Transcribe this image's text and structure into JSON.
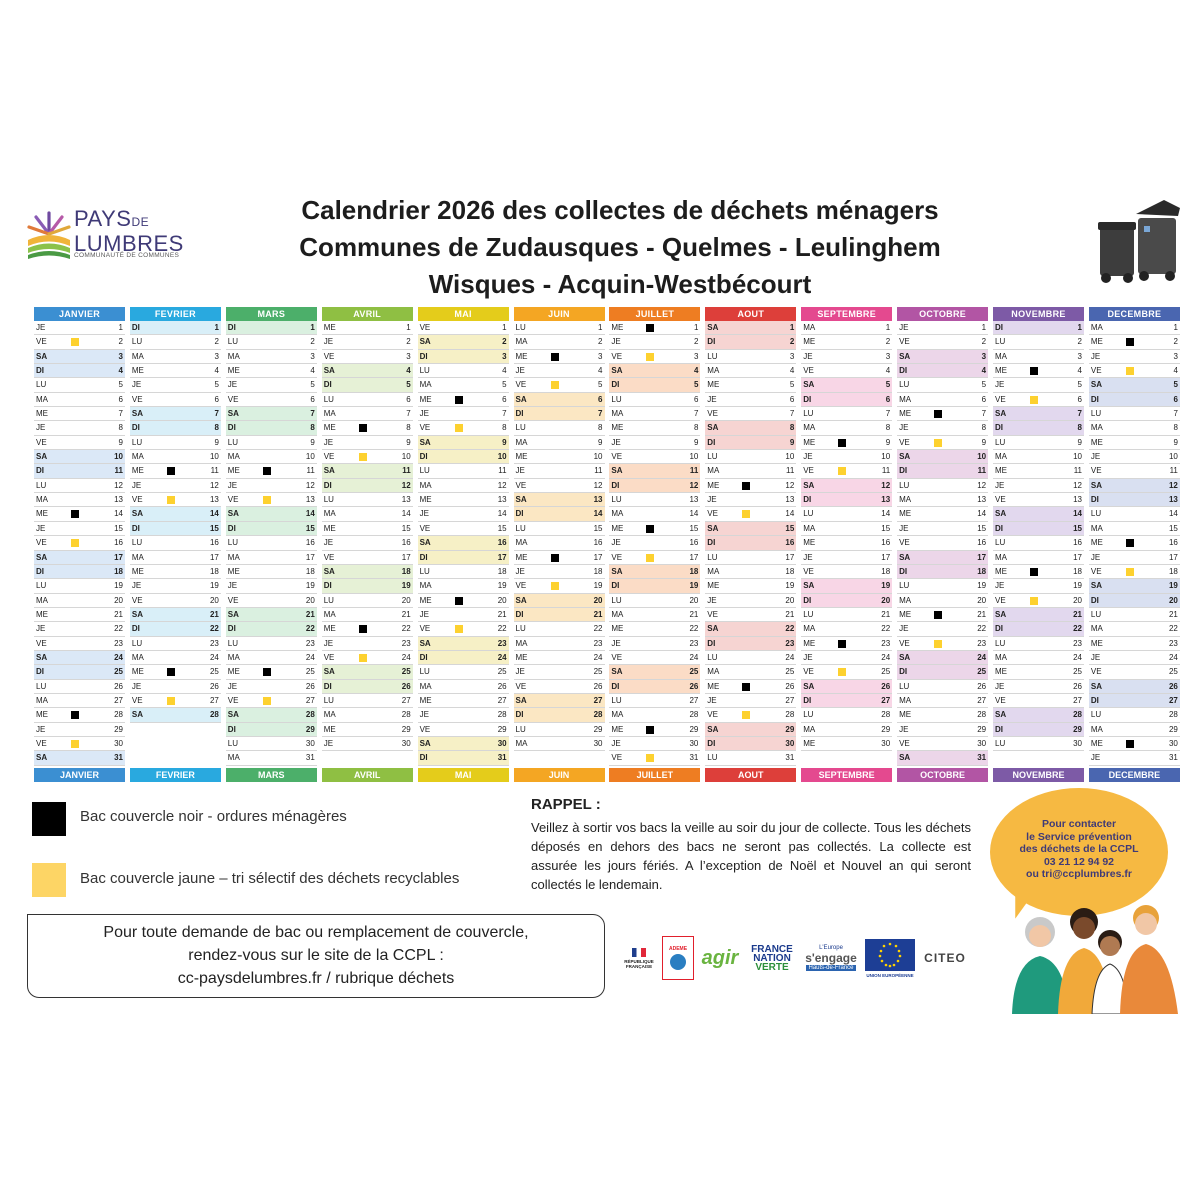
{
  "logo": {
    "line1": "PAYS",
    "line1_small": "DE",
    "line2": "LUMBRES",
    "sub": "COMMUNAUTÉ DE COMMUNES"
  },
  "title": {
    "line1": "Calendrier 2026 des collectes de déchets ménagers",
    "line2": "Communes de Zudausques - Quelmes - Leulinghem",
    "line3": "Wisques - Acquin-Westbécourt"
  },
  "months": [
    {
      "name": "JANVIER",
      "color": "#3b8fd2",
      "tint": "#dbe8f7",
      "start": 3,
      "days": 31,
      "black": [
        14,
        28
      ],
      "yellow": [
        2,
        16,
        30
      ]
    },
    {
      "name": "FEVRIER",
      "color": "#29a9df",
      "tint": "#d9eff8",
      "start": 6,
      "days": 28,
      "black": [
        11,
        25
      ],
      "yellow": [
        13,
        27
      ]
    },
    {
      "name": "MARS",
      "color": "#4caf6a",
      "tint": "#daf0e0",
      "start": 6,
      "days": 31,
      "black": [
        11,
        25
      ],
      "yellow": [
        13,
        27
      ]
    },
    {
      "name": "AVRIL",
      "color": "#8fbf43",
      "tint": "#e6f1d6",
      "start": 2,
      "days": 30,
      "black": [
        8,
        22
      ],
      "yellow": [
        10,
        24
      ]
    },
    {
      "name": "MAI",
      "color": "#e4cc1b",
      "tint": "#f6f0c6",
      "start": 4,
      "days": 31,
      "black": [
        6,
        20
      ],
      "yellow": [
        8,
        22
      ]
    },
    {
      "name": "JUIN",
      "color": "#f4a623",
      "tint": "#fbe7c3",
      "start": 0,
      "days": 30,
      "black": [
        3,
        17
      ],
      "yellow": [
        5,
        19
      ]
    },
    {
      "name": "JUILLET",
      "color": "#ee7d22",
      "tint": "#fbdcc6",
      "start": 2,
      "days": 31,
      "black": [
        1,
        15,
        29
      ],
      "yellow": [
        3,
        17,
        31
      ]
    },
    {
      "name": "AOUT",
      "color": "#dd3f3a",
      "tint": "#f6d4d2",
      "start": 5,
      "days": 31,
      "black": [
        12,
        26
      ],
      "yellow": [
        14,
        28
      ]
    },
    {
      "name": "SEPTEMBRE",
      "color": "#e4498f",
      "tint": "#f8d6e6",
      "start": 1,
      "days": 30,
      "black": [
        9,
        23
      ],
      "yellow": [
        11,
        25
      ]
    },
    {
      "name": "OCTOBRE",
      "color": "#b255a4",
      "tint": "#ecd6e9",
      "start": 3,
      "days": 31,
      "black": [
        7,
        21
      ],
      "yellow": [
        9,
        23
      ]
    },
    {
      "name": "NOVEMBRE",
      "color": "#7d5aa6",
      "tint": "#e2d8ee",
      "start": 6,
      "days": 30,
      "black": [
        4,
        18
      ],
      "yellow": [
        6,
        20
      ]
    },
    {
      "name": "DECEMBRE",
      "color": "#4a66b0",
      "tint": "#d9e0f1",
      "start": 1,
      "days": 31,
      "black": [
        2,
        16,
        30
      ],
      "yellow": [
        4,
        18
      ]
    }
  ],
  "day_abbr": [
    "LU",
    "MA",
    "ME",
    "JE",
    "VE",
    "SA",
    "DI"
  ],
  "legend": {
    "black_label": "Bac couvercle noir - ordures ménagères",
    "yellow_label": "Bac couvercle jaune – tri sélectif des déchets recyclables",
    "black_color": "#000000",
    "yellow_color": "#fdd565"
  },
  "rappel": {
    "title": "RAPPEL :",
    "text": "Veillez à sortir vos bacs la veille au soir du jour de collecte. Tous les déchets déposés en dehors des bacs ne seront pas collectés. La collecte est assurée les jours fériés.  A l’exception de Noël et Nouvel an qui seront collectés le lendemain."
  },
  "demande": {
    "line1": "Pour toute demande de bac ou remplacement de couvercle,",
    "line2": "rendez-vous sur le site de la CCPL :",
    "line3": "cc-paysdelumbres.fr / rubrique déchets"
  },
  "contact": {
    "line1": "Pour contacter",
    "line2": "le Service prévention",
    "line3": "des déchets de la CCPL",
    "phone": "03 21 12 94 92",
    "email": "ou tri@ccplumbres.fr"
  },
  "partners": {
    "republique": "RÉPUBLIQUE FRANÇAISE",
    "ademe": "ADEME",
    "agir": "agir",
    "fnv1": "FRANCE",
    "fnv2": "NATION",
    "fnv3": "VERTE",
    "europe_top": "L'Europe",
    "europe_main": "s'engage",
    "europe_region": "Hauts-de-France",
    "ue": "UNION EUROPÉENNE",
    "citeo": "CITEO"
  }
}
